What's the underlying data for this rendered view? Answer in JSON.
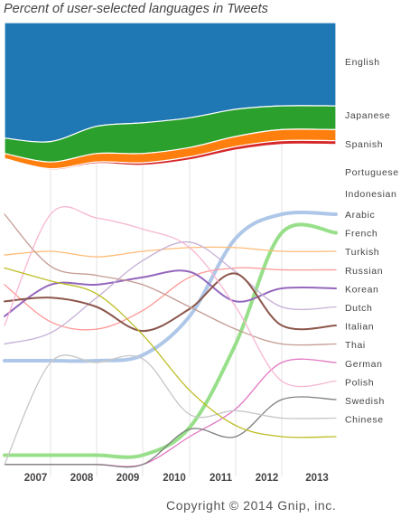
{
  "chart_data": {
    "type": "area",
    "title": "Percent of user-selected languages in Tweets",
    "xlabel": "",
    "ylabel": "",
    "x_ticks": [
      "2007",
      "2008",
      "2009",
      "2010",
      "2011",
      "2012",
      "2013"
    ],
    "grid": true,
    "legend": "right, labels at line ends",
    "series": [
      {
        "name": "English",
        "color": "#1f77b4",
        "style": "band",
        "values": [
          0.68,
          0.7,
          0.61,
          0.59,
          0.56,
          0.51,
          0.49
        ],
        "upper": 1.0
      },
      {
        "name": "Japanese",
        "color": "#2ca02c",
        "style": "band",
        "values": [
          0.09,
          0.12,
          0.16,
          0.18,
          0.175,
          0.16,
          0.14
        ]
      },
      {
        "name": "Spanish",
        "color": "#ff7f0e",
        "style": "band",
        "values": [
          0.03,
          0.04,
          0.05,
          0.055,
          0.055,
          0.06,
          0.065
        ]
      },
      {
        "name": "Portuguese",
        "color": "#d62728",
        "style": "band",
        "values": [
          0.005,
          0.007,
          0.01,
          0.015,
          0.018,
          0.02,
          0.022
        ]
      },
      {
        "name": "Indonesian",
        "color": "#aec7e8",
        "style": "line",
        "ranks": [
          7.9,
          7.9,
          7.9,
          7.6,
          5.5,
          1.3,
          0.0
        ]
      },
      {
        "name": "Arabic",
        "color": "#98df8a",
        "style": "line",
        "ranks": [
          13.0,
          13.0,
          13.0,
          13.0,
          11.5,
          7.0,
          1.0
        ]
      },
      {
        "name": "French",
        "color": "#ffbb78",
        "style": "line",
        "ranks": [
          2.2,
          2.0,
          2.3,
          2.0,
          1.8,
          1.8,
          2.0
        ]
      },
      {
        "name": "Turkish",
        "color": "#ff9896",
        "style": "line",
        "ranks": [
          3.8,
          5.8,
          6.2,
          5.2,
          3.4,
          2.9,
          3.0
        ]
      },
      {
        "name": "Russian",
        "color": "#9467bd",
        "style": "line",
        "ranks": [
          5.5,
          3.8,
          3.8,
          3.4,
          3.1,
          4.7,
          4.0
        ]
      },
      {
        "name": "Korean",
        "color": "#c5b0d5",
        "style": "line",
        "ranks": [
          7.0,
          6.4,
          4.5,
          2.5,
          1.5,
          3.1,
          5.0
        ]
      },
      {
        "name": "Dutch",
        "color": "#8c564b",
        "style": "line",
        "ranks": [
          4.7,
          4.5,
          5.0,
          6.3,
          5.1,
          3.2,
          6.0
        ]
      },
      {
        "name": "Italian",
        "color": "#c49c94",
        "style": "line",
        "ranks": [
          0.0,
          2.8,
          3.3,
          3.8,
          5.0,
          6.2,
          7.0
        ]
      },
      {
        "name": "Thai",
        "color": "#e377c2",
        "style": "line",
        "ranks": [
          13.5,
          13.5,
          13.5,
          13.5,
          12.0,
          10.5,
          8.0
        ]
      },
      {
        "name": "German",
        "color": "#f7b6d2",
        "style": "line",
        "ranks": [
          6.0,
          0.0,
          0.2,
          0.8,
          1.8,
          5.0,
          9.0
        ]
      },
      {
        "name": "Polish",
        "color": "#7f7f7f",
        "style": "line",
        "ranks": [
          13.5,
          13.5,
          13.5,
          13.5,
          11.6,
          12.0,
          10.0
        ]
      },
      {
        "name": "Swedish",
        "color": "#c7c7c7",
        "style": "line",
        "ranks": [
          13.5,
          8.0,
          8.0,
          7.8,
          10.8,
          10.6,
          11.0
        ]
      },
      {
        "name": "Chinese",
        "color": "#bcbd22",
        "style": "line",
        "ranks": [
          2.9,
          3.6,
          4.3,
          6.5,
          9.5,
          11.4,
          12.0
        ]
      }
    ]
  },
  "copyright": "Copyright © 2014 Gnip, inc."
}
